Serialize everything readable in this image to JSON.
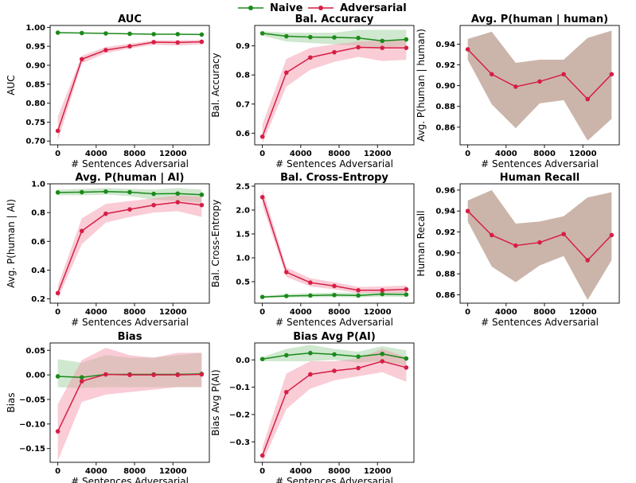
{
  "legend": {
    "naive_label": "Naive",
    "adversarial_label": "Adversarial"
  },
  "colors": {
    "naive": "#1b8a1b",
    "adversarial": "#d61f45",
    "naive_band": "#6ab96a",
    "adversarial_band": "#f39aae"
  },
  "chart_data": [
    {
      "type": "line",
      "title": "AUC",
      "xlabel": "# Sentences Adversarial",
      "ylabel": "AUC",
      "x": [
        0,
        2500,
        5000,
        7500,
        10000,
        12500,
        15000
      ],
      "xticks": [
        0,
        4000,
        8000,
        12000
      ],
      "xlim": [
        -800,
        15800
      ],
      "ylim": [
        0.69,
        1.005
      ],
      "yticks": [
        0.7,
        0.75,
        0.8,
        0.85,
        0.9,
        0.95,
        1.0
      ],
      "ytick_decimals": 2,
      "grid": false,
      "series": [
        {
          "name": "Naive",
          "values": [
            0.986,
            0.985,
            0.984,
            0.983,
            0.982,
            0.982,
            0.981
          ],
          "lower": [
            0.985,
            0.984,
            0.983,
            0.982,
            0.981,
            0.981,
            0.98
          ],
          "upper": [
            0.987,
            0.986,
            0.985,
            0.984,
            0.983,
            0.983,
            0.982
          ]
        },
        {
          "name": "Adversarial",
          "values": [
            0.727,
            0.916,
            0.94,
            0.95,
            0.961,
            0.96,
            0.962
          ],
          "lower": [
            0.7,
            0.905,
            0.932,
            0.944,
            0.954,
            0.952,
            0.955
          ],
          "upper": [
            0.765,
            0.925,
            0.948,
            0.957,
            0.966,
            0.966,
            0.967
          ]
        }
      ]
    },
    {
      "type": "line",
      "title": "Bal. Accuracy",
      "xlabel": "# Sentences Adversarial",
      "ylabel": "Bal. Accuracy",
      "x": [
        0,
        2500,
        5000,
        7500,
        10000,
        12500,
        15000
      ],
      "xticks": [
        0,
        4000,
        8000,
        12000
      ],
      "xlim": [
        -800,
        15800
      ],
      "ylim": [
        0.56,
        0.97
      ],
      "yticks": [
        0.6,
        0.7,
        0.8,
        0.9
      ],
      "ytick_decimals": 1,
      "grid": false,
      "series": [
        {
          "name": "Naive",
          "values": [
            0.943,
            0.933,
            0.93,
            0.929,
            0.927,
            0.917,
            0.922
          ],
          "lower": [
            0.935,
            0.915,
            0.91,
            0.905,
            0.9,
            0.893,
            0.9
          ],
          "upper": [
            0.95,
            0.945,
            0.945,
            0.945,
            0.955,
            0.955,
            0.955
          ]
        },
        {
          "name": "Adversarial",
          "values": [
            0.588,
            0.808,
            0.86,
            0.878,
            0.895,
            0.893,
            0.893
          ],
          "lower": [
            0.565,
            0.76,
            0.818,
            0.845,
            0.862,
            0.848,
            0.852
          ],
          "upper": [
            0.63,
            0.855,
            0.893,
            0.905,
            0.915,
            0.918,
            0.92
          ]
        }
      ]
    },
    {
      "type": "line",
      "title": "Avg. P(human | human)",
      "xlabel": "# Sentences Adversarial",
      "ylabel": "Avg. P(human | human)",
      "x": [
        0,
        2500,
        5000,
        7500,
        10000,
        12500,
        15000
      ],
      "xticks": [
        0,
        4000,
        8000,
        12000
      ],
      "xlim": [
        -800,
        15800
      ],
      "ylim": [
        0.843,
        0.958
      ],
      "yticks": [
        0.86,
        0.88,
        0.9,
        0.92,
        0.94
      ],
      "ytick_decimals": 2,
      "grid": false,
      "series": [
        {
          "name": "Adversarial",
          "values": [
            0.935,
            0.911,
            0.899,
            0.904,
            0.911,
            0.887,
            0.911
          ],
          "lower": [
            0.925,
            0.882,
            0.859,
            0.883,
            0.886,
            0.847,
            0.868
          ],
          "upper": [
            0.945,
            0.952,
            0.922,
            0.925,
            0.925,
            0.946,
            0.953
          ]
        }
      ]
    },
    {
      "type": "line",
      "title": "Avg. P(human | AI)",
      "xlabel": "# Sentences Adversarial",
      "ylabel": "Avg. P(human | AI)",
      "x": [
        0,
        2500,
        5000,
        7500,
        10000,
        12500,
        15000
      ],
      "xticks": [
        0,
        4000,
        8000,
        12000
      ],
      "xlim": [
        -800,
        15800
      ],
      "ylim": [
        0.17,
        1.0
      ],
      "yticks": [
        0.2,
        0.4,
        0.6,
        0.8,
        1.0
      ],
      "ytick_decimals": 1,
      "grid": false,
      "series": [
        {
          "name": "Naive",
          "values": [
            0.94,
            0.942,
            0.946,
            0.942,
            0.93,
            0.932,
            0.924
          ],
          "lower": [
            0.92,
            0.92,
            0.925,
            0.915,
            0.89,
            0.88,
            0.87
          ],
          "upper": [
            0.96,
            0.965,
            0.97,
            0.965,
            0.96,
            0.97,
            0.96
          ]
        },
        {
          "name": "Adversarial",
          "values": [
            0.24,
            0.672,
            0.792,
            0.822,
            0.852,
            0.872,
            0.852
          ],
          "lower": [
            0.2,
            0.58,
            0.73,
            0.77,
            0.8,
            0.81,
            0.77
          ],
          "upper": [
            0.29,
            0.76,
            0.86,
            0.88,
            0.9,
            0.92,
            0.91
          ]
        }
      ]
    },
    {
      "type": "line",
      "title": "Bal. Cross-Entropy",
      "xlabel": "# Sentences Adversarial",
      "ylabel": "Bal. Cross-Entropy",
      "x": [
        0,
        2500,
        5000,
        7500,
        10000,
        12500,
        15000
      ],
      "xticks": [
        0,
        4000,
        8000,
        12000
      ],
      "xlim": [
        -800,
        15800
      ],
      "ylim": [
        0.05,
        2.55
      ],
      "yticks": [
        0.5,
        1.0,
        1.5,
        2.0,
        2.5
      ],
      "ytick_decimals": 1,
      "grid": false,
      "series": [
        {
          "name": "Naive",
          "values": [
            0.18,
            0.2,
            0.21,
            0.22,
            0.21,
            0.24,
            0.23
          ],
          "lower": [
            0.16,
            0.17,
            0.17,
            0.18,
            0.17,
            0.19,
            0.18
          ],
          "upper": [
            0.2,
            0.24,
            0.26,
            0.27,
            0.27,
            0.29,
            0.29
          ]
        },
        {
          "name": "Adversarial",
          "values": [
            2.27,
            0.7,
            0.48,
            0.41,
            0.32,
            0.32,
            0.34
          ],
          "lower": [
            2.1,
            0.6,
            0.4,
            0.34,
            0.26,
            0.26,
            0.27
          ],
          "upper": [
            2.45,
            0.8,
            0.57,
            0.49,
            0.39,
            0.4,
            0.42
          ]
        }
      ]
    },
    {
      "type": "line",
      "title": "Human Recall",
      "xlabel": "# Sentences Adversarial",
      "ylabel": "Human Recall",
      "x": [
        0,
        2500,
        5000,
        7500,
        10000,
        12500,
        15000
      ],
      "xticks": [
        0,
        4000,
        8000,
        12000
      ],
      "xlim": [
        -800,
        15800
      ],
      "ylim": [
        0.852,
        0.966
      ],
      "yticks": [
        0.86,
        0.88,
        0.9,
        0.92,
        0.94,
        0.96
      ],
      "ytick_decimals": 2,
      "grid": false,
      "series": [
        {
          "name": "Adversarial",
          "values": [
            0.94,
            0.917,
            0.907,
            0.91,
            0.918,
            0.893,
            0.917
          ],
          "lower": [
            0.93,
            0.887,
            0.872,
            0.888,
            0.897,
            0.855,
            0.893
          ],
          "upper": [
            0.95,
            0.96,
            0.928,
            0.93,
            0.935,
            0.953,
            0.958
          ]
        }
      ]
    },
    {
      "type": "line",
      "title": "Bias",
      "xlabel": "# Sentences Adversarial",
      "ylabel": "Bias",
      "x": [
        0,
        2500,
        5000,
        7500,
        10000,
        12500,
        15000
      ],
      "xticks": [
        0,
        4000,
        8000,
        12000
      ],
      "xlim": [
        -800,
        15800
      ],
      "ylim": [
        -0.178,
        0.065
      ],
      "yticks": [
        -0.15,
        -0.1,
        -0.05,
        0.0,
        0.05
      ],
      "ytick_decimals": 2,
      "grid": false,
      "series": [
        {
          "name": "Naive",
          "values": [
            -0.003,
            -0.005,
            0.001,
            0.001,
            0.001,
            0.001,
            0.002
          ],
          "lower": [
            -0.025,
            -0.027,
            -0.025,
            -0.025,
            -0.025,
            -0.025,
            -0.025
          ],
          "upper": [
            0.032,
            0.025,
            0.04,
            0.035,
            0.035,
            0.04,
            0.045
          ]
        },
        {
          "name": "Adversarial",
          "values": [
            -0.115,
            -0.013,
            0.001,
            0.0,
            0.0,
            0.0,
            0.001
          ],
          "lower": [
            -0.175,
            -0.055,
            -0.04,
            -0.035,
            -0.03,
            -0.025,
            -0.025
          ],
          "upper": [
            -0.06,
            0.03,
            0.055,
            0.04,
            0.035,
            0.045,
            0.045
          ]
        }
      ]
    },
    {
      "type": "line",
      "title": "Bias Avg P(AI)",
      "xlabel": "# Sentences Adversarial",
      "ylabel": "Bias Avg P(AI)",
      "x": [
        0,
        2500,
        5000,
        7500,
        10000,
        12500,
        15000
      ],
      "xticks": [
        0,
        4000,
        8000,
        12000
      ],
      "xlim": [
        -800,
        15800
      ],
      "ylim": [
        -0.375,
        0.062
      ],
      "yticks": [
        -0.3,
        -0.2,
        -0.1,
        0.0
      ],
      "ytick_decimals": 1,
      "grid": false,
      "series": [
        {
          "name": "Naive",
          "values": [
            0.003,
            0.017,
            0.025,
            0.02,
            0.012,
            0.022,
            0.005
          ],
          "lower": [
            -0.005,
            -0.005,
            -0.005,
            0.0,
            -0.01,
            -0.005,
            -0.02
          ],
          "upper": [
            0.01,
            0.04,
            0.055,
            0.04,
            0.03,
            0.05,
            0.035
          ]
        },
        {
          "name": "Adversarial",
          "values": [
            -0.35,
            -0.118,
            -0.053,
            -0.04,
            -0.03,
            -0.005,
            -0.028
          ],
          "lower": [
            -0.375,
            -0.18,
            -0.105,
            -0.075,
            -0.06,
            -0.045,
            -0.08
          ],
          "upper": [
            -0.32,
            -0.05,
            -0.005,
            -0.005,
            0.005,
            0.04,
            0.01
          ]
        }
      ]
    }
  ]
}
